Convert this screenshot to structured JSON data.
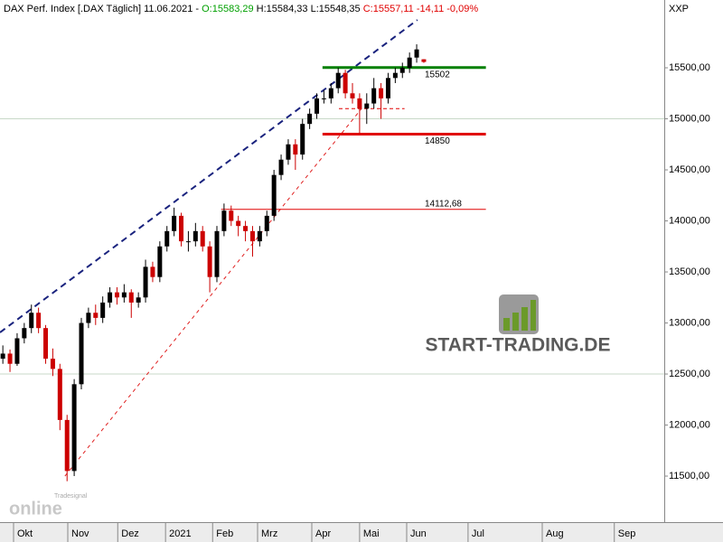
{
  "chart_data": {
    "type": "candlestick",
    "header": [
      {
        "text": "DAX Perf. Index [.DAX  Täglich] 11.06.2021 - ",
        "color": "#000000"
      },
      {
        "text": "O:15583,29",
        "color": "#00a000"
      },
      {
        "text": " H:15584,33 L:15548,35 ",
        "color": "#000000"
      },
      {
        "text": "C:15557,11 -14,11 -0,09%",
        "color": "#e00000"
      }
    ],
    "axis_title": "XXP",
    "watermark": "START-TRADING.DE",
    "brand_small": "Tradesignal",
    "brand_large": "online",
    "up_color": "#000000",
    "down_color": "#cc0000",
    "ohlc": [
      [
        12650,
        12780,
        12600,
        12700
      ],
      [
        12700,
        12740,
        12520,
        12600
      ],
      [
        12600,
        12900,
        12580,
        12850
      ],
      [
        12850,
        13000,
        12800,
        12950
      ],
      [
        12950,
        13180,
        12900,
        13100
      ],
      [
        13100,
        13150,
        12900,
        12950
      ],
      [
        12950,
        12980,
        12600,
        12650
      ],
      [
        12650,
        12750,
        12480,
        12550
      ],
      [
        12550,
        12600,
        11950,
        12050
      ],
      [
        12050,
        12100,
        11450,
        11550
      ],
      [
        11550,
        12450,
        11500,
        12400
      ],
      [
        12400,
        13050,
        12350,
        13000
      ],
      [
        13000,
        13150,
        12950,
        13100
      ],
      [
        13100,
        13180,
        12980,
        13050
      ],
      [
        13050,
        13260,
        13000,
        13200
      ],
      [
        13200,
        13350,
        13150,
        13300
      ],
      [
        13300,
        13350,
        13180,
        13250
      ],
      [
        13250,
        13380,
        13200,
        13300
      ],
      [
        13300,
        13330,
        13050,
        13200
      ],
      [
        13200,
        13300,
        13150,
        13250
      ],
      [
        13250,
        13620,
        13200,
        13550
      ],
      [
        13550,
        13600,
        13400,
        13450
      ],
      [
        13450,
        13800,
        13400,
        13750
      ],
      [
        13750,
        13950,
        13700,
        13900
      ],
      [
        13900,
        14130,
        13850,
        14050
      ],
      [
        14050,
        14080,
        13750,
        13800
      ],
      [
        13800,
        13900,
        13700,
        13800
      ],
      [
        13800,
        13980,
        13750,
        13900
      ],
      [
        13900,
        13950,
        13700,
        13750
      ],
      [
        13750,
        13800,
        13300,
        13450
      ],
      [
        13450,
        13950,
        13400,
        13900
      ],
      [
        13900,
        14170,
        13850,
        14100
      ],
      [
        14100,
        14150,
        13950,
        14000
      ],
      [
        14000,
        14050,
        13850,
        13950
      ],
      [
        13950,
        14000,
        13800,
        13900
      ],
      [
        13900,
        13950,
        13650,
        13800
      ],
      [
        13800,
        13950,
        13750,
        13900
      ],
      [
        13900,
        14100,
        13850,
        14050
      ],
      [
        14050,
        14500,
        14000,
        14450
      ],
      [
        14450,
        14650,
        14400,
        14600
      ],
      [
        14600,
        14800,
        14550,
        14750
      ],
      [
        14750,
        14800,
        14500,
        14650
      ],
      [
        14650,
        15000,
        14600,
        14950
      ],
      [
        14950,
        15100,
        14900,
        15050
      ],
      [
        15050,
        15250,
        15000,
        15200
      ],
      [
        15200,
        15280,
        15150,
        15200
      ],
      [
        15200,
        15350,
        15150,
        15300
      ],
      [
        15300,
        15500,
        15250,
        15450
      ],
      [
        15450,
        15480,
        15200,
        15250
      ],
      [
        15250,
        15350,
        15150,
        15200
      ],
      [
        15200,
        15250,
        14850,
        15100
      ],
      [
        15100,
        15250,
        14950,
        15150
      ],
      [
        15150,
        15400,
        15100,
        15300
      ],
      [
        15300,
        15350,
        15000,
        15200
      ],
      [
        15200,
        15450,
        15150,
        15400
      ],
      [
        15400,
        15500,
        15350,
        15450
      ],
      [
        15450,
        15550,
        15400,
        15500
      ],
      [
        15500,
        15650,
        15450,
        15600
      ],
      [
        15600,
        15730,
        15550,
        15680
      ],
      [
        15583.29,
        15584.33,
        15548.35,
        15557.11
      ]
    ],
    "xlim": [
      -0.4,
      92.7
    ],
    "xticks": [
      {
        "value": 1.5,
        "label": "Okt"
      },
      {
        "value": 9.1,
        "label": "Nov"
      },
      {
        "value": 16.1,
        "label": "Dez"
      },
      {
        "value": 22.8,
        "label": "2021"
      },
      {
        "value": 29.4,
        "label": "Feb"
      },
      {
        "value": 35.7,
        "label": "Mrz"
      },
      {
        "value": 43.3,
        "label": "Apr"
      },
      {
        "value": 50.0,
        "label": "Mai"
      },
      {
        "value": 56.6,
        "label": "Jun"
      },
      {
        "value": 65.2,
        "label": "Jul"
      },
      {
        "value": 75.6,
        "label": "Aug"
      },
      {
        "value": 85.7,
        "label": "Sep"
      }
    ],
    "ylim": [
      11049,
      16164
    ],
    "yticks": [
      {
        "value": 11500,
        "label": "11500,00"
      },
      {
        "value": 12000,
        "label": "12000,00"
      },
      {
        "value": 12500,
        "label": "12500,00"
      },
      {
        "value": 13000,
        "label": "13000,00"
      },
      {
        "value": 13500,
        "label": "13500,00"
      },
      {
        "value": 14000,
        "label": "14000,00"
      },
      {
        "value": 14500,
        "label": "14500,00"
      },
      {
        "value": 15000,
        "label": "15000,00"
      },
      {
        "value": 15500,
        "label": "15500,00"
      }
    ],
    "grid_lines": [
      12500,
      15000
    ],
    "trendlines": [
      {
        "x": [
          -0.4,
          58.1
        ],
        "y": [
          12907,
          15969
        ],
        "color": "#1a237e",
        "dash": "7,5",
        "width": 2
      },
      {
        "x": [
          8.7,
          50.3
        ],
        "y": [
          11500,
          15102
        ],
        "color": "#e02020",
        "dash": "4,4",
        "width": 1
      }
    ],
    "levels": [
      {
        "value": 15502,
        "label": "15502",
        "x": [
          44.8,
          67.7
        ],
        "color": "#008000",
        "width": 3
      },
      {
        "value": 14850,
        "label": "14850",
        "x": [
          44.8,
          67.7
        ],
        "color": "#e00000",
        "width": 3
      },
      {
        "value": 14112.68,
        "label": "14112,68",
        "x": [
          30.6,
          67.7
        ],
        "color": "#e00000",
        "width": 1
      },
      {
        "value": 15100,
        "x": [
          47.1,
          56.3
        ],
        "color": "#e00000",
        "width": 1,
        "dash": "4,3"
      }
    ]
  }
}
